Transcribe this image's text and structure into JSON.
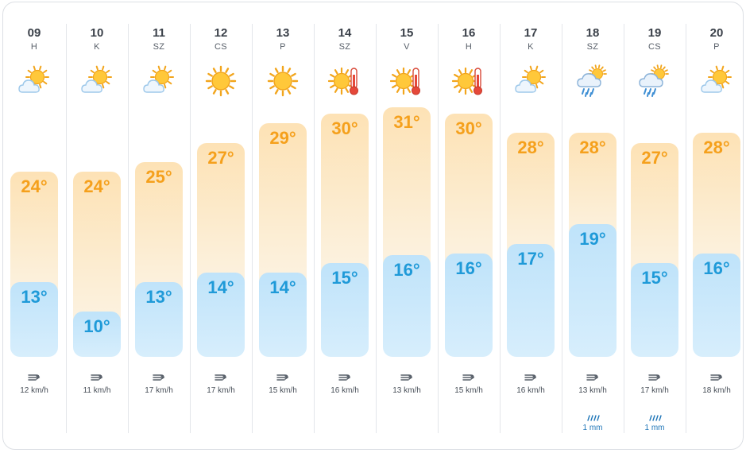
{
  "colors": {
    "max_text": "#f5a01c",
    "min_text": "#1f9ad8",
    "rain": "#1f76b8",
    "divider": "#e3e6ea"
  },
  "days": [
    {
      "day": "09",
      "dow": "H",
      "icon": "sun-behind-cloud-icon",
      "max": "24°",
      "min": "13°",
      "wind": "12 km/h",
      "rain": ""
    },
    {
      "day": "10",
      "dow": "K",
      "icon": "sun-behind-cloud-icon",
      "max": "24°",
      "min": "10°",
      "wind": "11 km/h",
      "rain": ""
    },
    {
      "day": "11",
      "dow": "SZ",
      "icon": "sun-behind-cloud-icon",
      "max": "25°",
      "min": "13°",
      "wind": "17 km/h",
      "rain": ""
    },
    {
      "day": "12",
      "dow": "CS",
      "icon": "sun-icon",
      "max": "27°",
      "min": "14°",
      "wind": "17 km/h",
      "rain": ""
    },
    {
      "day": "13",
      "dow": "P",
      "icon": "sun-icon",
      "max": "29°",
      "min": "14°",
      "wind": "15 km/h",
      "rain": ""
    },
    {
      "day": "14",
      "dow": "SZ",
      "icon": "sun-thermometer-icon",
      "max": "30°",
      "min": "15°",
      "wind": "16 km/h",
      "rain": ""
    },
    {
      "day": "15",
      "dow": "V",
      "icon": "sun-thermometer-icon",
      "max": "31°",
      "min": "16°",
      "wind": "13 km/h",
      "rain": ""
    },
    {
      "day": "16",
      "dow": "H",
      "icon": "sun-thermometer-icon",
      "max": "30°",
      "min": "16°",
      "wind": "15 km/h",
      "rain": ""
    },
    {
      "day": "17",
      "dow": "K",
      "icon": "sun-behind-cloud-icon",
      "max": "28°",
      "min": "17°",
      "wind": "16 km/h",
      "rain": ""
    },
    {
      "day": "18",
      "dow": "SZ",
      "icon": "rain-cloud-icon",
      "max": "28°",
      "min": "19°",
      "wind": "13 km/h",
      "rain": "1 mm"
    },
    {
      "day": "19",
      "dow": "CS",
      "icon": "rain-cloud-icon",
      "max": "27°",
      "min": "15°",
      "wind": "17 km/h",
      "rain": "1 mm"
    },
    {
      "day": "20",
      "dow": "P",
      "icon": "sun-behind-cloud-icon",
      "max": "28°",
      "min": "16°",
      "wind": "18 km/h",
      "rain": ""
    }
  ]
}
